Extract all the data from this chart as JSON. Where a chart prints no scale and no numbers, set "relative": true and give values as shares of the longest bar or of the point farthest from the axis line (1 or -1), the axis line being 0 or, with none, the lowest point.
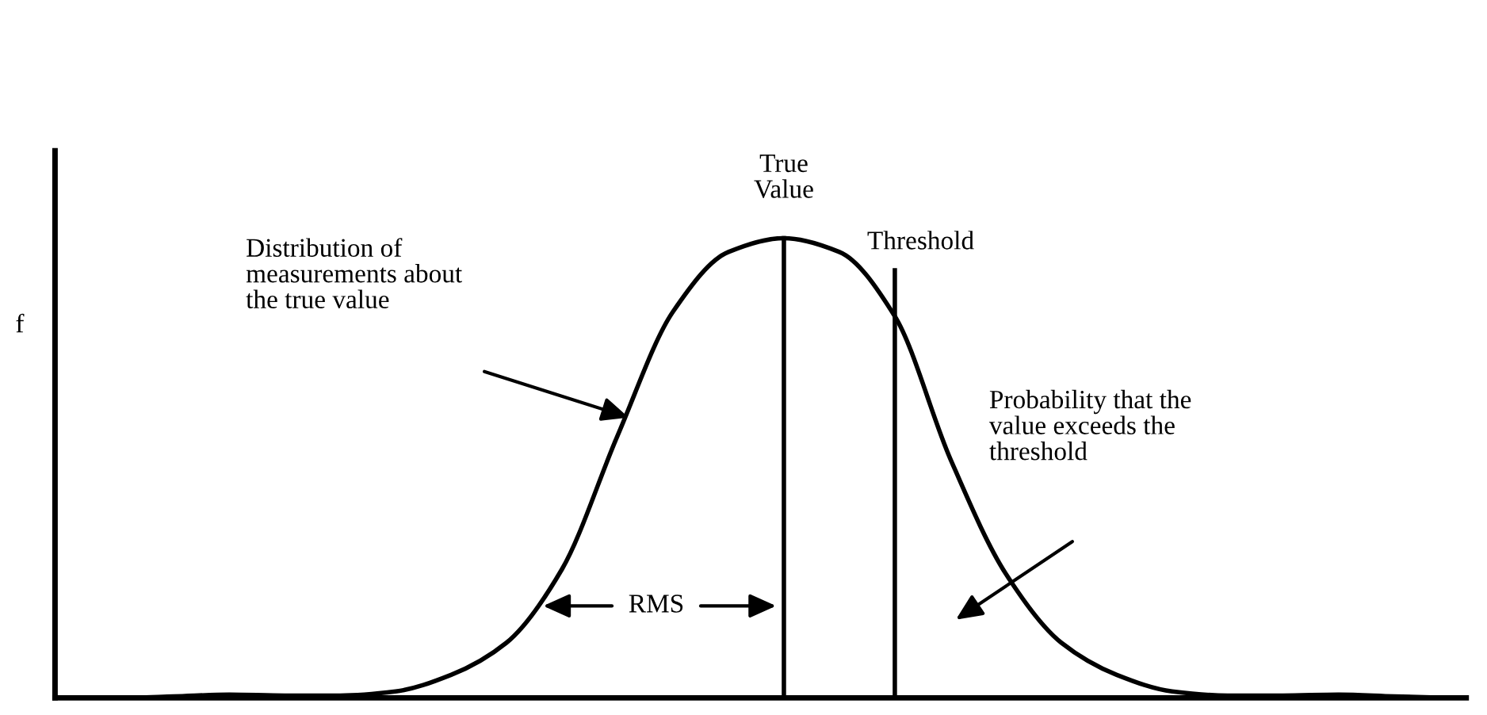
{
  "chart_data": {
    "type": "line",
    "relative": true,
    "ylabel": "f",
    "categories": [
      null,
      null,
      null,
      null,
      null,
      null,
      null,
      null,
      null,
      null,
      null,
      null,
      null,
      null,
      null,
      null,
      null,
      null,
      null,
      null,
      null,
      null,
      null,
      null,
      null,
      null
    ],
    "series": [
      {
        "color": "#000000",
        "values": [
          0.0,
          0.0,
          0.003,
          0.007,
          0.005,
          0.005,
          0.014,
          0.05,
          0.12,
          0.28,
          0.57,
          0.84,
          0.97,
          1.0,
          0.97,
          0.83,
          0.52,
          0.27,
          0.12,
          0.05,
          0.014,
          0.005,
          0.005,
          0.007,
          0.003,
          0.0
        ]
      }
    ],
    "annotations": [
      "Distribution of\nmeasurements about\nthe true value",
      "Probability that the\nvalue exceeds the\nthreshold",
      "RMS",
      "True\nValue",
      "Threshold"
    ],
    "grid": false,
    "marker": "none",
    "line_style": "solid"
  }
}
